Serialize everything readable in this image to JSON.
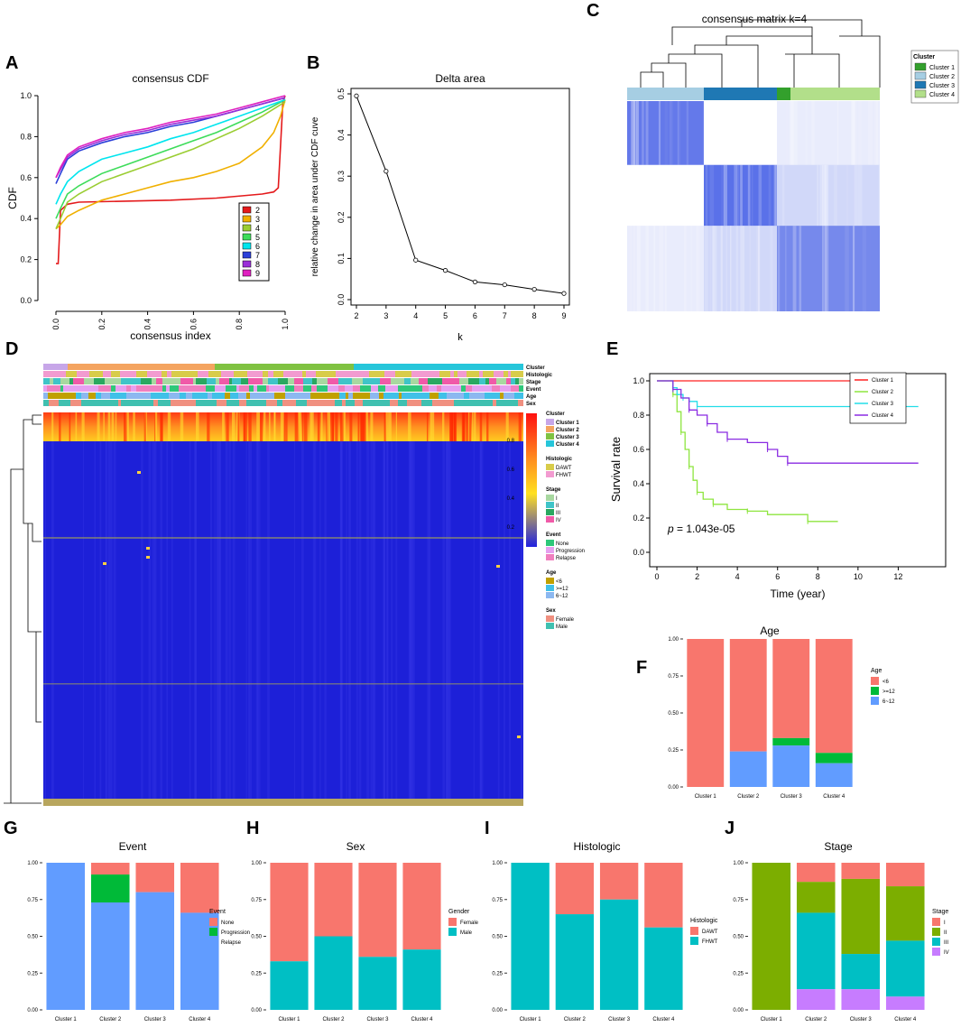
{
  "panel_labels": [
    "A",
    "B",
    "C",
    "D",
    "E",
    "F",
    "G",
    "H",
    "I",
    "J"
  ],
  "chart_data": [
    {
      "panel": "A",
      "type": "line",
      "title": "consensus CDF",
      "xlabel": "consensus index",
      "ylabel": "CDF",
      "xlim": [
        0,
        1
      ],
      "ylim": [
        0,
        1
      ],
      "xticks": [
        "0.0",
        "0.2",
        "0.4",
        "0.6",
        "0.8",
        "1.0"
      ],
      "yticks": [
        "0.0",
        "0.2",
        "0.4",
        "0.6",
        "0.8",
        "1.0"
      ],
      "legend_position": "bottom-right",
      "series": [
        {
          "name": "2",
          "color": "#e41a1c",
          "x": [
            0,
            0.01,
            0.02,
            0.05,
            0.1,
            0.3,
            0.5,
            0.7,
            0.9,
            0.95,
            0.97,
            0.99,
            1
          ],
          "y": [
            0.18,
            0.18,
            0.44,
            0.47,
            0.48,
            0.485,
            0.49,
            0.5,
            0.52,
            0.53,
            0.55,
            0.97,
            1
          ]
        },
        {
          "name": "3",
          "color": "#f0b000",
          "x": [
            0,
            0.02,
            0.05,
            0.1,
            0.2,
            0.3,
            0.4,
            0.5,
            0.6,
            0.7,
            0.8,
            0.9,
            0.95,
            0.98,
            1
          ],
          "y": [
            0.35,
            0.37,
            0.41,
            0.44,
            0.49,
            0.52,
            0.55,
            0.58,
            0.6,
            0.63,
            0.67,
            0.75,
            0.82,
            0.9,
            0.98
          ]
        },
        {
          "name": "4",
          "color": "#9acd32",
          "x": [
            0,
            0.02,
            0.05,
            0.1,
            0.2,
            0.3,
            0.4,
            0.5,
            0.6,
            0.7,
            0.8,
            0.9,
            1
          ],
          "y": [
            0.35,
            0.4,
            0.48,
            0.52,
            0.58,
            0.62,
            0.66,
            0.7,
            0.74,
            0.79,
            0.84,
            0.9,
            0.97
          ]
        },
        {
          "name": "5",
          "color": "#3ddc5a",
          "x": [
            0,
            0.02,
            0.05,
            0.1,
            0.2,
            0.3,
            0.4,
            0.5,
            0.6,
            0.7,
            0.8,
            0.9,
            1
          ],
          "y": [
            0.4,
            0.45,
            0.52,
            0.56,
            0.62,
            0.66,
            0.7,
            0.74,
            0.78,
            0.82,
            0.87,
            0.92,
            0.98
          ]
        },
        {
          "name": "6",
          "color": "#00e5ee",
          "x": [
            0,
            0.02,
            0.05,
            0.1,
            0.2,
            0.3,
            0.4,
            0.5,
            0.6,
            0.7,
            0.8,
            0.9,
            1
          ],
          "y": [
            0.47,
            0.52,
            0.58,
            0.63,
            0.69,
            0.72,
            0.75,
            0.79,
            0.82,
            0.86,
            0.9,
            0.94,
            0.98
          ]
        },
        {
          "name": "7",
          "color": "#2b3fd8",
          "x": [
            0,
            0.02,
            0.05,
            0.1,
            0.2,
            0.3,
            0.4,
            0.5,
            0.6,
            0.7,
            0.8,
            0.9,
            1
          ],
          "y": [
            0.57,
            0.62,
            0.69,
            0.73,
            0.77,
            0.8,
            0.82,
            0.85,
            0.87,
            0.9,
            0.93,
            0.96,
            0.99
          ]
        },
        {
          "name": "8",
          "color": "#9a2fd8",
          "x": [
            0,
            0.02,
            0.05,
            0.1,
            0.2,
            0.3,
            0.4,
            0.5,
            0.6,
            0.7,
            0.8,
            0.9,
            1
          ],
          "y": [
            0.6,
            0.64,
            0.7,
            0.74,
            0.78,
            0.81,
            0.83,
            0.86,
            0.88,
            0.9,
            0.93,
            0.96,
            0.99
          ]
        },
        {
          "name": "9",
          "color": "#e020c0",
          "x": [
            0,
            0.02,
            0.05,
            0.1,
            0.2,
            0.3,
            0.4,
            0.5,
            0.6,
            0.7,
            0.8,
            0.9,
            1
          ],
          "y": [
            0.6,
            0.65,
            0.71,
            0.75,
            0.79,
            0.82,
            0.84,
            0.87,
            0.89,
            0.91,
            0.94,
            0.97,
            1
          ]
        }
      ]
    },
    {
      "panel": "B",
      "type": "line",
      "title": "Delta area",
      "xlabel": "k",
      "ylabel": "relative change in area under CDF cuve",
      "xlim": [
        2,
        9
      ],
      "ylim": [
        0,
        0.5
      ],
      "xticks": [
        "2",
        "3",
        "4",
        "5",
        "6",
        "7",
        "8",
        "9"
      ],
      "yticks": [
        "0.0",
        "0.1",
        "0.2",
        "0.3",
        "0.4",
        "0.5"
      ],
      "x": [
        2,
        3,
        4,
        5,
        6,
        7,
        8,
        9
      ],
      "y": [
        0.495,
        0.312,
        0.096,
        0.071,
        0.043,
        0.036,
        0.025,
        0.015
      ]
    },
    {
      "panel": "C",
      "type": "heatmap",
      "title": "consensus matrix k=4",
      "legend_title": "Cluster",
      "legend": [
        "Cluster 1",
        "Cluster 2",
        "Cluster 3",
        "Cluster 4"
      ],
      "cluster_colors": [
        "#33a02c",
        "#a6cee3",
        "#1f78b4",
        "#b2df8a"
      ]
    },
    {
      "panel": "D",
      "type": "heatmap",
      "annotation_tracks": [
        "Cluster",
        "Histologic",
        "Stage",
        "Event",
        "Age",
        "Sex"
      ],
      "colorbar_ticks": [
        "0.8",
        "0.6",
        "0.4",
        "0.2"
      ],
      "legend_groups": [
        {
          "title": "Cluster",
          "items": [
            "Cluster 1",
            "Cluster 2",
            "Cluster 3",
            "Cluster 4"
          ],
          "colors": [
            "#c7a6e8",
            "#f4a460",
            "#7fc241",
            "#26c6da"
          ]
        },
        {
          "title": "Histologic",
          "items": [
            "DAWT",
            "FHWT"
          ],
          "colors": [
            "#d8cc4a",
            "#f29bd0"
          ]
        },
        {
          "title": "Stage",
          "items": [
            "I",
            "II",
            "III",
            "IV"
          ],
          "colors": [
            "#a8d8a0",
            "#3fc4c8",
            "#2aa860",
            "#f05aa8"
          ]
        },
        {
          "title": "Event",
          "items": [
            "None",
            "Progression",
            "Relapse"
          ],
          "colors": [
            "#2ec87a",
            "#e6a0f0",
            "#f07fbf"
          ]
        },
        {
          "title": "Age",
          "items": [
            "<6",
            ">=12",
            "6~12"
          ],
          "colors": [
            "#c0a000",
            "#40c0e8",
            "#8cb8f0"
          ]
        },
        {
          "title": "Sex",
          "items": [
            "Female",
            "Male"
          ],
          "colors": [
            "#f09080",
            "#40c0b0"
          ]
        }
      ]
    },
    {
      "panel": "E",
      "type": "line",
      "xlabel": "Time (year)",
      "ylabel": "Survival rate",
      "xlim": [
        0,
        14
      ],
      "ylim": [
        0,
        1
      ],
      "xticks": [
        "0",
        "2",
        "4",
        "6",
        "8",
        "10",
        "12"
      ],
      "yticks": [
        "0.0",
        "0.2",
        "0.4",
        "0.6",
        "0.8",
        "1.0"
      ],
      "annotation_prefix": "p",
      "annotation": "= 1.043e-05",
      "series": [
        {
          "name": "Cluster 1",
          "color": "#ff2020",
          "x": [
            0,
            10.2
          ],
          "y": [
            1,
            1
          ]
        },
        {
          "name": "Cluster 2",
          "color": "#8ee53f",
          "x": [
            0,
            0.8,
            1.0,
            1.2,
            1.4,
            1.6,
            1.8,
            2.0,
            2.3,
            2.8,
            3.5,
            4.5,
            5.5,
            7.5,
            9.0
          ],
          "y": [
            1,
            0.92,
            0.82,
            0.7,
            0.6,
            0.5,
            0.42,
            0.35,
            0.31,
            0.28,
            0.25,
            0.24,
            0.22,
            0.18,
            0.18
          ]
        },
        {
          "name": "Cluster 3",
          "color": "#22dde8",
          "x": [
            0,
            0.8,
            1.0,
            1.3,
            1.6,
            2.0,
            13
          ],
          "y": [
            1,
            0.96,
            0.92,
            0.9,
            0.88,
            0.85,
            0.85
          ]
        },
        {
          "name": "Cluster 4",
          "color": "#8a2be2",
          "x": [
            0,
            0.8,
            1.2,
            1.6,
            2.0,
            2.5,
            3.0,
            3.5,
            4.5,
            5.5,
            6.0,
            6.5,
            13
          ],
          "y": [
            1,
            0.95,
            0.9,
            0.83,
            0.8,
            0.75,
            0.7,
            0.66,
            0.64,
            0.6,
            0.56,
            0.52,
            0.52
          ]
        }
      ]
    },
    {
      "panel": "F",
      "type": "bar",
      "title": "Age",
      "legend_title": "Age",
      "categories": [
        "Cluster 1",
        "Cluster 2",
        "Cluster 3",
        "Cluster 4"
      ],
      "yticks": [
        "0.00",
        "0.25",
        "0.50",
        "0.75",
        "1.00"
      ],
      "series": [
        {
          "name": "<6",
          "color": "#f8766d",
          "values": [
            1.0,
            0.76,
            0.67,
            0.77
          ]
        },
        {
          "name": ">=12",
          "color": "#00ba38",
          "values": [
            0,
            0,
            0.05,
            0.07
          ]
        },
        {
          "name": "6~12",
          "color": "#619cff",
          "values": [
            0,
            0.24,
            0.28,
            0.16
          ]
        }
      ]
    },
    {
      "panel": "G",
      "type": "bar",
      "title": "Event",
      "legend_title": "Event",
      "categories": [
        "Cluster 1",
        "Cluster 2",
        "Cluster 3",
        "Cluster 4"
      ],
      "yticks": [
        "0.00",
        "0.25",
        "0.50",
        "0.75",
        "1.00"
      ],
      "series": [
        {
          "name": "None",
          "color": "#f8766d",
          "values": [
            0,
            0.08,
            0.2,
            0.34
          ]
        },
        {
          "name": "Progression",
          "color": "#00ba38",
          "values": [
            0,
            0.19,
            0,
            0
          ]
        },
        {
          "name": "Relapse",
          "color": "#619cff",
          "values": [
            1.0,
            0.73,
            0.8,
            0.66
          ]
        }
      ]
    },
    {
      "panel": "H",
      "type": "bar",
      "title": "Sex",
      "legend_title": "Gender",
      "categories": [
        "Cluster 1",
        "Cluster 2",
        "Cluster 3",
        "Cluster 4"
      ],
      "yticks": [
        "0.00",
        "0.25",
        "0.50",
        "0.75",
        "1.00"
      ],
      "series": [
        {
          "name": "Female",
          "color": "#f8766d",
          "values": [
            0.67,
            0.5,
            0.64,
            0.59
          ]
        },
        {
          "name": "Male",
          "color": "#00bfc4",
          "values": [
            0.33,
            0.5,
            0.36,
            0.41
          ]
        }
      ]
    },
    {
      "panel": "I",
      "type": "bar",
      "title": "Histologic",
      "legend_title": "Histologic",
      "categories": [
        "Cluster 1",
        "Cluster 2",
        "Cluster 3",
        "Cluster 4"
      ],
      "yticks": [
        "0.00",
        "0.25",
        "0.50",
        "0.75",
        "1.00"
      ],
      "series": [
        {
          "name": "DAWT",
          "color": "#f8766d",
          "values": [
            0,
            0.35,
            0.25,
            0.44
          ]
        },
        {
          "name": "FHWT",
          "color": "#00bfc4",
          "values": [
            1.0,
            0.65,
            0.75,
            0.56
          ]
        }
      ]
    },
    {
      "panel": "J",
      "type": "bar",
      "title": "Stage",
      "legend_title": "Stage",
      "categories": [
        "Cluster 1",
        "Cluster 2",
        "Cluster 3",
        "Cluster 4"
      ],
      "yticks": [
        "0.00",
        "0.25",
        "0.50",
        "0.75",
        "1.00"
      ],
      "series": [
        {
          "name": "I",
          "color": "#f8766d",
          "values": [
            0,
            0.13,
            0.11,
            0.16
          ]
        },
        {
          "name": "II",
          "color": "#7cae00",
          "values": [
            1.0,
            0.21,
            0.51,
            0.37
          ]
        },
        {
          "name": "III",
          "color": "#00bfc4",
          "values": [
            0,
            0.52,
            0.24,
            0.38
          ]
        },
        {
          "name": "IV",
          "color": "#c77cff",
          "values": [
            0,
            0.14,
            0.14,
            0.09
          ]
        }
      ]
    }
  ]
}
